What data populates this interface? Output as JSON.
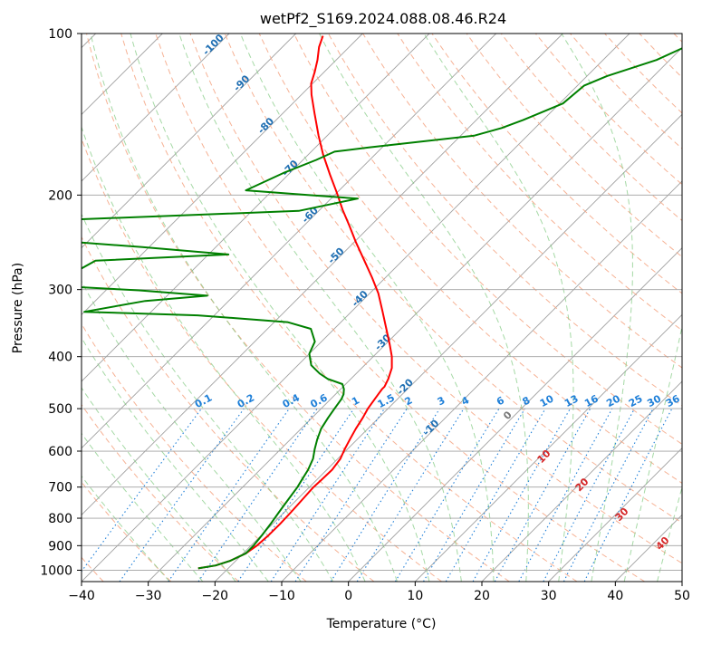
{
  "chart_data": {
    "type": "line",
    "title": "wetPf2_S169.2024.088.08.46.R24",
    "xlabel": "Temperature (°C)",
    "ylabel": "Pressure (hPa)",
    "xlim": [
      -40,
      50
    ],
    "ylim": [
      1050,
      100
    ],
    "yscale": "log",
    "x_ticks": [
      -40,
      -30,
      -20,
      -10,
      0,
      10,
      20,
      30,
      40,
      50
    ],
    "y_ticks": [
      100,
      200,
      300,
      400,
      500,
      600,
      700,
      800,
      900,
      1000
    ],
    "grid": true,
    "skew_t": true,
    "series": [
      {
        "name": "",
        "color": "#ff0000",
        "points": [
          [
            -24.5,
            992
          ],
          [
            -22.3,
            980
          ],
          [
            -20.8,
            960
          ],
          [
            -19.6,
            930
          ],
          [
            -19.1,
            900
          ],
          [
            -18.9,
            860
          ],
          [
            -18.9,
            820
          ],
          [
            -19.0,
            780
          ],
          [
            -19.2,
            740
          ],
          [
            -19.4,
            700
          ],
          [
            -19.3,
            680
          ],
          [
            -19.2,
            650
          ],
          [
            -19.6,
            620
          ],
          [
            -20.4,
            595
          ],
          [
            -21.1,
            570
          ],
          [
            -21.8,
            545
          ],
          [
            -22.4,
            520
          ],
          [
            -23.0,
            500
          ],
          [
            -23.4,
            480
          ],
          [
            -23.6,
            470
          ],
          [
            -23.8,
            460
          ],
          [
            -23.8,
            455
          ],
          [
            -24.4,
            440
          ],
          [
            -25.5,
            420
          ],
          [
            -27.2,
            400
          ],
          [
            -29.3,
            380
          ],
          [
            -32.2,
            355
          ],
          [
            -35.3,
            330
          ],
          [
            -38.7,
            305
          ],
          [
            -42.0,
            285
          ],
          [
            -45.7,
            265
          ],
          [
            -49.7,
            245
          ],
          [
            -53.2,
            228
          ],
          [
            -56.6,
            213
          ],
          [
            -60.0,
            198
          ],
          [
            -63.8,
            183
          ],
          [
            -67.8,
            168
          ],
          [
            -71.3,
            155
          ],
          [
            -75.2,
            141
          ],
          [
            -78.5,
            130
          ],
          [
            -80.2,
            124
          ],
          [
            -81.4,
            118
          ],
          [
            -82.8,
            112
          ],
          [
            -84.5,
            106
          ],
          [
            -85.6,
            101
          ]
        ]
      },
      {
        "name": "",
        "color": "#008000",
        "points": [
          [
            -24.5,
            992
          ],
          [
            -22.3,
            980
          ],
          [
            -20.8,
            960
          ],
          [
            -19.6,
            930
          ],
          [
            -19.6,
            900
          ],
          [
            -19.9,
            860
          ],
          [
            -20.3,
            820
          ],
          [
            -20.8,
            780
          ],
          [
            -21.3,
            740
          ],
          [
            -21.8,
            700
          ],
          [
            -22.2,
            680
          ],
          [
            -22.8,
            650
          ],
          [
            -23.7,
            620
          ],
          [
            -24.9,
            595
          ],
          [
            -26.0,
            570
          ],
          [
            -27.0,
            545
          ],
          [
            -27.6,
            520
          ],
          [
            -28.0,
            500
          ],
          [
            -28.4,
            480
          ],
          [
            -28.8,
            470
          ],
          [
            -29.5,
            460
          ],
          [
            -30.5,
            450
          ],
          [
            -33.5,
            440
          ],
          [
            -35.5,
            430
          ],
          [
            -38.0,
            415
          ],
          [
            -40.0,
            395
          ],
          [
            -41.0,
            375
          ],
          [
            -43.5,
            355
          ],
          [
            -48.0,
            345
          ],
          [
            -62.5,
            335
          ],
          [
            -80.0,
            330
          ],
          [
            -72.5,
            315
          ],
          [
            -64.0,
            308
          ],
          [
            -75.0,
            301
          ],
          [
            -89.0,
            295
          ],
          [
            -86.0,
            265
          ],
          [
            -67.0,
            258
          ],
          [
            -81.0,
            250
          ],
          [
            -91.0,
            245
          ],
          [
            -95.0,
            222
          ],
          [
            -63.0,
            214
          ],
          [
            -56.0,
            203
          ],
          [
            -64.0,
            200
          ],
          [
            -74.0,
            196
          ],
          [
            -71.0,
            182
          ],
          [
            -68.0,
            172
          ],
          [
            -66.5,
            166
          ],
          [
            -62.0,
            163
          ],
          [
            -55.0,
            159
          ],
          [
            -48.0,
            155
          ],
          [
            -45.0,
            150
          ],
          [
            -43.0,
            145
          ],
          [
            -39.5,
            135
          ],
          [
            -39.0,
            125
          ],
          [
            -37.0,
            120
          ],
          [
            -32.0,
            112
          ],
          [
            -28.5,
            103
          ],
          [
            -28.0,
            100
          ]
        ]
      }
    ],
    "annotations": {
      "dry_adiabat_labels": [
        "-100",
        "-90",
        "-80",
        "-70",
        "-60",
        "-50",
        "-40",
        "-30",
        "-20",
        "-10"
      ],
      "mixing_ratio_labels": [
        "0.1",
        "0.2",
        "0.4",
        "0.6",
        "1",
        "1.5",
        "2",
        "3",
        "4",
        "6",
        "8",
        "10",
        "13",
        "16",
        "20",
        "25",
        "30",
        "36"
      ],
      "moist_adiabat_labels": [
        "0",
        "10",
        "20",
        "30",
        "40"
      ]
    },
    "colors": {
      "dry_adiabat": "#f4a582",
      "dry_adiabat_label": "#1f6fb3",
      "moist_adiabat": "#7fc97f",
      "mixing_ratio": "#1e7fd8",
      "moist_label": "#d62728",
      "isotherm": "#a0a0a0",
      "isobar": "#a0a0a0"
    }
  }
}
